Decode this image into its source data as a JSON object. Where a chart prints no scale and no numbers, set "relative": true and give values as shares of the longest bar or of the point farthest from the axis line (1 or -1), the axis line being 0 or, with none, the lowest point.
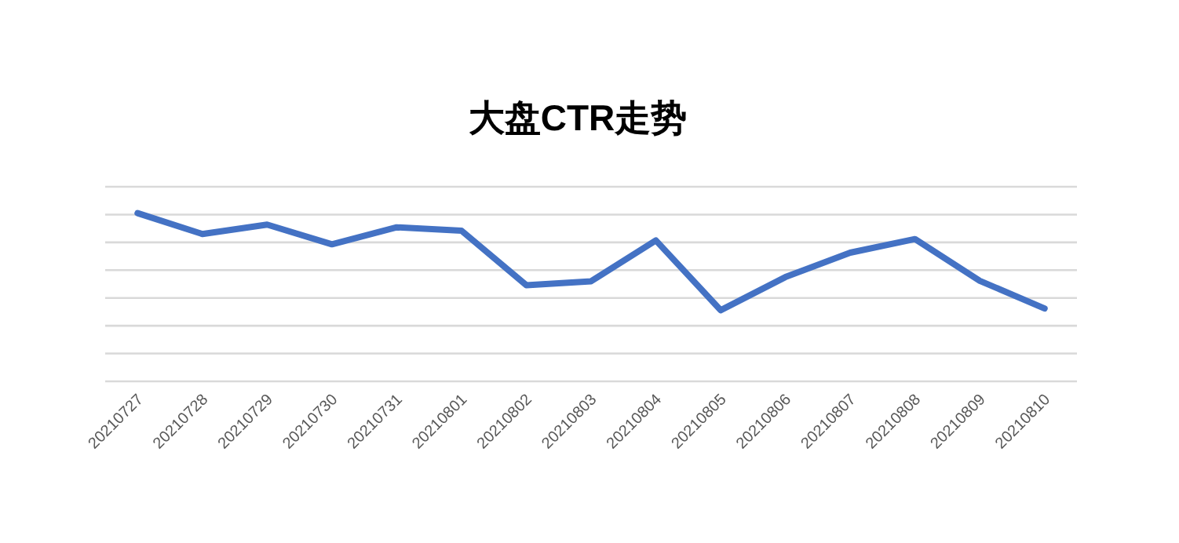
{
  "chart_data": {
    "type": "line",
    "title": "大盘CTR走势",
    "relative": true,
    "grid": "y",
    "marker": "none",
    "line_style": "solid",
    "categories": [
      "20210727",
      "20210728",
      "20210729",
      "20210730",
      "20210731",
      "20210801",
      "20210802",
      "20210803",
      "20210804",
      "20210805",
      "20210806",
      "20210807",
      "20210808",
      "20210809",
      "20210810"
    ],
    "series": [
      {
        "color": "#4472c4",
        "values": [
          1,
          0.876,
          0.932,
          0.815,
          0.916,
          0.896,
          0.572,
          0.595,
          0.838,
          0.423,
          0.62,
          0.765,
          0.846,
          0.598,
          0.433
        ]
      }
    ]
  }
}
